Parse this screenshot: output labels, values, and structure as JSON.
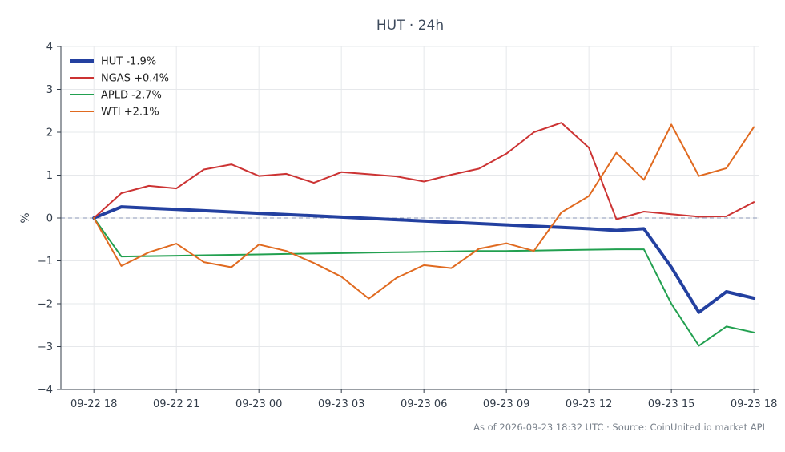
{
  "chart_data": {
    "type": "line",
    "title": "HUT · 24h",
    "xlabel": "",
    "ylabel": "%",
    "ylim": [
      -4,
      4
    ],
    "yticks": [
      "−4",
      "−3",
      "−2",
      "−1",
      "0",
      "1",
      "2",
      "3",
      "4"
    ],
    "ytick_values": [
      -4,
      -3,
      -2,
      -1,
      0,
      1,
      2,
      3,
      4
    ],
    "xlim": [
      -1.2,
      24.2
    ],
    "xticks": [
      "09-22 18",
      "09-22 21",
      "09-23 00",
      "09-23 03",
      "09-23 06",
      "09-23 09",
      "09-23 12",
      "09-23 15",
      "09-23 18"
    ],
    "xtick_values": [
      0,
      3,
      6,
      9,
      12,
      15,
      18,
      21,
      24
    ],
    "x": [
      0,
      1,
      2,
      3,
      4,
      5,
      6,
      7,
      8,
      9,
      10,
      11,
      12,
      13,
      14,
      15,
      16,
      17,
      18,
      19,
      20,
      21,
      22,
      23,
      24
    ],
    "grid": true,
    "legend": "top-left",
    "zero_line": true,
    "series": [
      {
        "name": "HUT -1.9%",
        "color": "#2340a0",
        "width": 4,
        "values": [
          0,
          0.26,
          0.23,
          0.2,
          0.17,
          0.14,
          0.11,
          0.08,
          0.05,
          0.02,
          -0.01,
          -0.04,
          -0.07,
          -0.1,
          -0.13,
          -0.16,
          -0.19,
          -0.22,
          -0.25,
          -0.29,
          -0.25,
          -1.15,
          -2.2,
          -1.72,
          -1.87
        ]
      },
      {
        "name": "NGAS +0.4%",
        "color": "#cc3333",
        "width": 2,
        "values": [
          0,
          0.58,
          0.75,
          0.69,
          1.13,
          1.25,
          0.98,
          1.03,
          0.82,
          1.07,
          1.02,
          0.97,
          0.85,
          1.01,
          1.15,
          1.5,
          2.0,
          2.22,
          1.64,
          -0.03,
          0.15,
          0.09,
          0.03,
          0.04,
          0.37
        ]
      },
      {
        "name": "APLD -2.7%",
        "color": "#22a050",
        "width": 2,
        "values": [
          0,
          -0.9,
          -0.89,
          -0.88,
          -0.87,
          -0.86,
          -0.85,
          -0.84,
          -0.83,
          -0.82,
          -0.81,
          -0.8,
          -0.79,
          -0.78,
          -0.77,
          -0.77,
          -0.76,
          -0.75,
          -0.74,
          -0.73,
          -0.73,
          -2.0,
          -2.98,
          -2.53,
          -2.67
        ]
      },
      {
        "name": "WTI +2.1%",
        "color": "#e06a20",
        "width": 2,
        "values": [
          0,
          -1.12,
          -0.8,
          -0.6,
          -1.03,
          -1.15,
          -0.62,
          -0.77,
          -1.05,
          -1.37,
          -1.88,
          -1.4,
          -1.1,
          -1.17,
          -0.72,
          -0.59,
          -0.77,
          0.13,
          0.51,
          1.52,
          0.89,
          2.18,
          0.98,
          1.16,
          2.12
        ]
      }
    ]
  },
  "footer": "As of 2026-09-23 18:32 UTC · Source: CoinUnited.io market API"
}
